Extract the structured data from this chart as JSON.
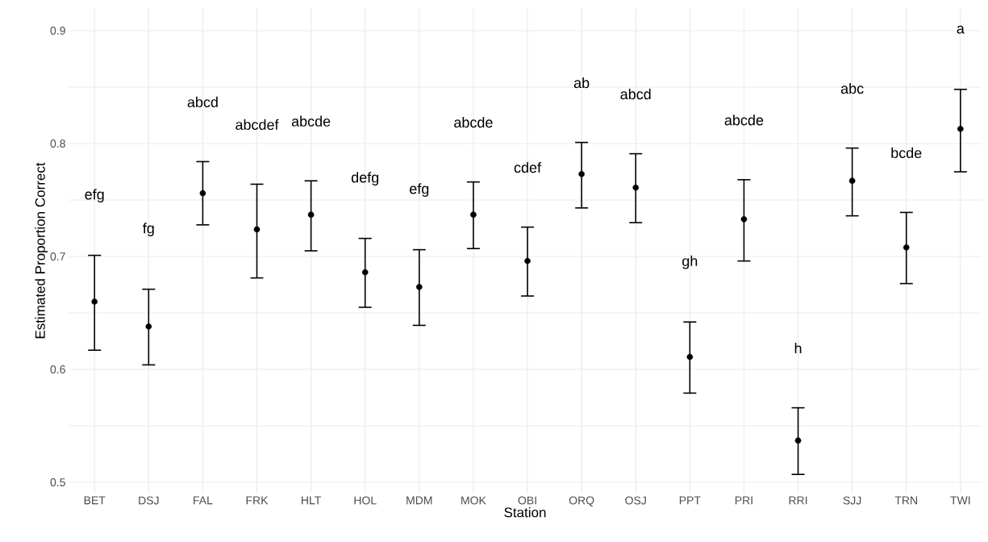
{
  "chart_data": {
    "type": "scatter",
    "xlabel": "Station",
    "ylabel": "Estimated Proportion Correct",
    "categories": [
      "BET",
      "DSJ",
      "FAL",
      "FRK",
      "HLT",
      "HOL",
      "MDM",
      "MOK",
      "OBI",
      "ORQ",
      "OSJ",
      "PPT",
      "PRI",
      "RRI",
      "SJJ",
      "TRN",
      "TWI"
    ],
    "values": [
      0.66,
      0.638,
      0.756,
      0.724,
      0.737,
      0.686,
      0.673,
      0.737,
      0.696,
      0.773,
      0.761,
      0.611,
      0.733,
      0.537,
      0.767,
      0.708,
      0.813
    ],
    "errors": [
      [
        0.617,
        0.701
      ],
      [
        0.604,
        0.671
      ],
      [
        0.728,
        0.784
      ],
      [
        0.681,
        0.764
      ],
      [
        0.705,
        0.767
      ],
      [
        0.655,
        0.716
      ],
      [
        0.639,
        0.706
      ],
      [
        0.707,
        0.766
      ],
      [
        0.665,
        0.726
      ],
      [
        0.743,
        0.801
      ],
      [
        0.73,
        0.791
      ],
      [
        0.579,
        0.642
      ],
      [
        0.696,
        0.768
      ],
      [
        0.507,
        0.566
      ],
      [
        0.736,
        0.796
      ],
      [
        0.676,
        0.739
      ],
      [
        0.775,
        0.848
      ]
    ],
    "color": "#000000",
    "marker": "circle",
    "grid": true,
    "ylim": [
      0.49,
      0.92
    ],
    "yticks": [
      {
        "value": 0.5,
        "label": "0.5"
      },
      {
        "value": 0.55,
        "label": null
      },
      {
        "value": 0.6,
        "label": "0.6"
      },
      {
        "value": 0.65,
        "label": null
      },
      {
        "value": 0.7,
        "label": "0.7"
      },
      {
        "value": 0.75,
        "label": null
      },
      {
        "value": 0.8,
        "label": "0.8"
      },
      {
        "value": 0.85,
        "label": null
      },
      {
        "value": 0.9,
        "label": "0.9"
      }
    ],
    "annotations": [
      "efg",
      "fg",
      "abcd",
      "abcdef",
      "abcde",
      "defg",
      "efg",
      "abcde",
      "cdef",
      "ab",
      "abcd",
      "gh",
      "abcde",
      "h",
      "abc",
      "bcde",
      "a"
    ]
  }
}
